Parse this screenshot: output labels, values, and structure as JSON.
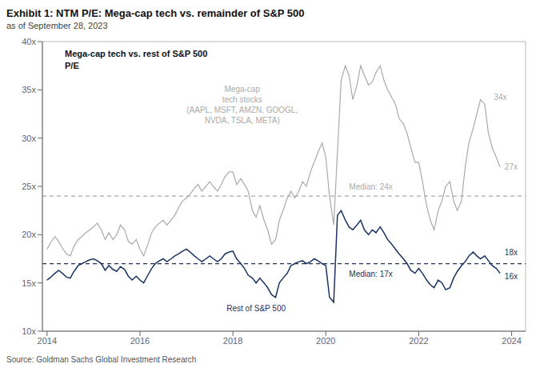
{
  "chart_data": {
    "type": "line",
    "title": "Exhibit 1: NTM P/E: Mega-cap tech vs. remainder of S&P 500",
    "subtitle": "as of September 28, 2023",
    "source": "Source: Goldman Sachs Global Investment Research",
    "inner_title": "Mega-cap tech vs. rest of S&P 500\nP/E",
    "grid": false,
    "xlim": [
      2013.9,
      2024.3
    ],
    "xticks": [
      2014,
      2016,
      2018,
      2020,
      2022,
      2024
    ],
    "ylim": [
      10,
      40
    ],
    "yticks": [
      {
        "value": 10,
        "label": "10x"
      },
      {
        "value": 15,
        "label": "15x"
      },
      {
        "value": 20,
        "label": "20x"
      },
      {
        "value": 25,
        "label": "25x"
      },
      {
        "value": 30,
        "label": "30x"
      },
      {
        "value": 35,
        "label": "35x"
      },
      {
        "value": 40,
        "label": "40x"
      }
    ],
    "x": [
      2014.0,
      2014.08,
      2014.17,
      2014.25,
      2014.33,
      2014.42,
      2014.5,
      2014.58,
      2014.67,
      2014.75,
      2014.83,
      2014.92,
      2015.0,
      2015.08,
      2015.17,
      2015.25,
      2015.33,
      2015.42,
      2015.5,
      2015.58,
      2015.67,
      2015.75,
      2015.83,
      2015.92,
      2016.0,
      2016.08,
      2016.17,
      2016.25,
      2016.33,
      2016.42,
      2016.5,
      2016.58,
      2016.67,
      2016.75,
      2016.83,
      2016.92,
      2017.0,
      2017.08,
      2017.17,
      2017.25,
      2017.33,
      2017.42,
      2017.5,
      2017.58,
      2017.67,
      2017.75,
      2017.83,
      2017.92,
      2018.0,
      2018.08,
      2018.17,
      2018.25,
      2018.33,
      2018.42,
      2018.5,
      2018.58,
      2018.67,
      2018.75,
      2018.83,
      2018.92,
      2019.0,
      2019.08,
      2019.17,
      2019.25,
      2019.33,
      2019.42,
      2019.5,
      2019.58,
      2019.67,
      2019.75,
      2019.83,
      2019.92,
      2020.0,
      2020.08,
      2020.17,
      2020.25,
      2020.33,
      2020.42,
      2020.5,
      2020.58,
      2020.67,
      2020.75,
      2020.83,
      2020.92,
      2021.0,
      2021.08,
      2021.17,
      2021.25,
      2021.33,
      2021.42,
      2021.5,
      2021.58,
      2021.67,
      2021.75,
      2021.83,
      2021.92,
      2022.0,
      2022.08,
      2022.17,
      2022.25,
      2022.33,
      2022.42,
      2022.5,
      2022.58,
      2022.67,
      2022.75,
      2022.83,
      2022.92,
      2023.0,
      2023.08,
      2023.17,
      2023.25,
      2023.33,
      2023.42,
      2023.5,
      2023.58,
      2023.67,
      2023.75
    ],
    "series": [
      {
        "color": "#aaaaaa",
        "values": [
          18.5,
          19.2,
          19.8,
          19.3,
          18.6,
          18.0,
          17.8,
          18.8,
          19.5,
          19.8,
          20.2,
          20.5,
          20.8,
          21.2,
          20.5,
          19.5,
          20.2,
          19.5,
          20.0,
          21.0,
          20.5,
          19.3,
          19.0,
          19.5,
          18.5,
          17.8,
          19.0,
          20.2,
          20.8,
          21.2,
          21.5,
          21.0,
          21.5,
          22.0,
          22.8,
          23.5,
          23.8,
          24.2,
          24.8,
          25.2,
          24.5,
          25.0,
          25.5,
          25.0,
          24.5,
          25.2,
          26.0,
          26.5,
          26.5,
          25.2,
          25.8,
          25.2,
          24.5,
          22.5,
          21.8,
          23.0,
          21.5,
          20.5,
          19.0,
          19.5,
          21.5,
          22.5,
          23.8,
          24.5,
          23.8,
          24.5,
          25.5,
          25.0,
          26.5,
          27.5,
          28.5,
          29.5,
          28.0,
          24.0,
          21.0,
          28.5,
          36.0,
          37.5,
          36.5,
          34.0,
          35.5,
          37.5,
          36.5,
          35.5,
          35.8,
          36.8,
          37.5,
          36.0,
          35.0,
          34.2,
          33.5,
          32.0,
          31.5,
          30.5,
          29.0,
          27.5,
          27.5,
          25.5,
          23.0,
          21.5,
          20.5,
          22.5,
          23.5,
          25.0,
          25.5,
          23.5,
          22.5,
          23.5,
          27.0,
          29.5,
          31.0,
          32.5,
          34.0,
          33.5,
          30.5,
          29.0,
          28.0,
          27.0
        ]
      },
      {
        "color": "#1a3360",
        "values": [
          15.3,
          15.6,
          16.0,
          16.3,
          16.0,
          15.6,
          15.5,
          16.2,
          16.8,
          17.0,
          17.2,
          17.4,
          17.5,
          17.3,
          17.0,
          16.3,
          16.8,
          16.4,
          16.2,
          16.7,
          16.4,
          15.7,
          15.3,
          15.7,
          15.3,
          15.0,
          15.8,
          16.5,
          17.0,
          17.3,
          17.5,
          17.2,
          17.5,
          17.8,
          18.0,
          18.3,
          18.5,
          18.2,
          17.8,
          17.5,
          17.2,
          17.5,
          17.8,
          17.5,
          17.2,
          17.5,
          18.0,
          18.2,
          18.3,
          17.5,
          17.0,
          16.5,
          15.8,
          15.5,
          15.0,
          15.5,
          15.0,
          14.5,
          13.8,
          13.5,
          15.0,
          15.5,
          16.0,
          16.8,
          17.0,
          17.2,
          17.3,
          17.0,
          17.2,
          17.5,
          17.3,
          17.0,
          16.8,
          13.5,
          13.0,
          22.0,
          22.5,
          21.5,
          20.8,
          20.5,
          21.0,
          21.5,
          20.5,
          20.0,
          20.5,
          20.2,
          20.8,
          20.2,
          19.5,
          19.0,
          18.5,
          18.0,
          17.5,
          17.0,
          16.3,
          16.0,
          16.5,
          16.0,
          15.3,
          14.8,
          14.5,
          15.3,
          15.0,
          14.3,
          14.5,
          15.5,
          16.2,
          16.8,
          17.2,
          17.8,
          18.2,
          17.8,
          17.5,
          17.8,
          17.3,
          16.8,
          16.5,
          16.0
        ]
      }
    ],
    "reference_lines": [
      {
        "y": 24,
        "color": "#aaaaaa",
        "line_style": "dashed"
      },
      {
        "y": 17,
        "color": "#1a3360",
        "line_style": "dashed"
      }
    ],
    "annotations": [
      {
        "text": "Median: 24x",
        "x": 2020.5,
        "y": 24.5,
        "color": "#aaaaaa",
        "align": "left",
        "anchor": "bottom"
      },
      {
        "text": "Median: 17x",
        "x": 2020.5,
        "y": 16.3,
        "color": "#1a3360",
        "align": "left",
        "anchor": "top"
      },
      {
        "text": "34x",
        "x": 2023.62,
        "y": 34.2,
        "color": "#aaaaaa",
        "align": "left",
        "anchor": "middle"
      },
      {
        "text": "27x",
        "x": 2023.85,
        "y": 27.0,
        "color": "#aaaaaa",
        "align": "left",
        "anchor": "middle"
      },
      {
        "text": "18x",
        "x": 2023.85,
        "y": 18.2,
        "color": "#1a3360",
        "align": "left",
        "anchor": "middle"
      },
      {
        "text": "16x",
        "x": 2023.85,
        "y": 15.7,
        "color": "#1a3360",
        "align": "left",
        "anchor": "middle"
      },
      {
        "text": "Mega-cap\ntech stocks\n(AAPL, MSFT, AMZN, GOOGL,\nNVDA, TSLA, META)",
        "x": 2018.2,
        "y": 35.5,
        "color": "#aaaaaa",
        "align": "center",
        "anchor": "top"
      },
      {
        "text": "Rest of S&P 500",
        "x": 2018.5,
        "y": 12.8,
        "color": "#1a3360",
        "align": "center",
        "anchor": "top"
      }
    ]
  }
}
